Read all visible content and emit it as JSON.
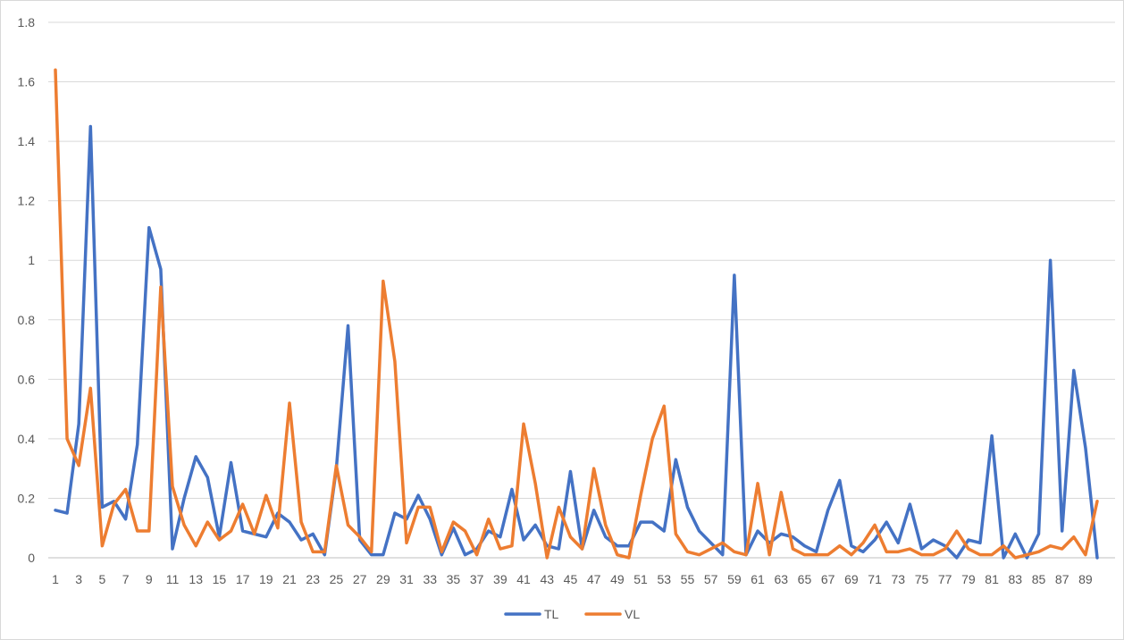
{
  "chart_data": {
    "type": "line",
    "title": "",
    "xlabel": "",
    "ylabel": "",
    "ylim": [
      0,
      1.8
    ],
    "yticks": [
      "0",
      "0.2",
      "0.4",
      "0.6",
      "0.8",
      "1",
      "1.2",
      "1.4",
      "1.6",
      "1.8"
    ],
    "x": [
      1,
      2,
      3,
      4,
      5,
      6,
      7,
      8,
      9,
      10,
      11,
      12,
      13,
      14,
      15,
      16,
      17,
      18,
      19,
      20,
      21,
      22,
      23,
      24,
      25,
      26,
      27,
      28,
      29,
      30,
      31,
      32,
      33,
      34,
      35,
      36,
      37,
      38,
      39,
      40,
      41,
      42,
      43,
      44,
      45,
      46,
      47,
      48,
      49,
      50,
      51,
      52,
      53,
      54,
      55,
      56,
      57,
      58,
      59,
      60,
      61,
      62,
      63,
      64,
      65,
      66,
      67,
      68,
      69,
      70,
      71,
      72,
      73,
      74,
      75,
      76,
      77,
      78,
      79,
      80,
      81,
      82,
      83,
      84,
      85,
      86,
      87,
      88,
      89,
      90
    ],
    "xtick_labels": [
      "1",
      "3",
      "5",
      "7",
      "9",
      "11",
      "13",
      "15",
      "17",
      "19",
      "21",
      "23",
      "25",
      "27",
      "29",
      "31",
      "33",
      "35",
      "37",
      "39",
      "41",
      "43",
      "45",
      "47",
      "49",
      "51",
      "53",
      "55",
      "57",
      "59",
      "61",
      "63",
      "65",
      "67",
      "69",
      "71",
      "73",
      "75",
      "77",
      "79",
      "81",
      "83",
      "85",
      "87",
      "89"
    ],
    "grid": true,
    "legend_position": "bottom",
    "series": [
      {
        "name": "TL",
        "color": "#4472C4",
        "values": [
          0.16,
          0.15,
          0.45,
          1.45,
          0.17,
          0.19,
          0.13,
          0.38,
          1.11,
          0.97,
          0.03,
          0.2,
          0.34,
          0.27,
          0.07,
          0.32,
          0.09,
          0.08,
          0.07,
          0.15,
          0.12,
          0.06,
          0.08,
          0.01,
          0.3,
          0.78,
          0.06,
          0.01,
          0.01,
          0.15,
          0.13,
          0.21,
          0.13,
          0.01,
          0.1,
          0.01,
          0.03,
          0.09,
          0.07,
          0.23,
          0.06,
          0.11,
          0.04,
          0.03,
          0.29,
          0.03,
          0.16,
          0.07,
          0.04,
          0.04,
          0.12,
          0.12,
          0.09,
          0.33,
          0.17,
          0.09,
          0.05,
          0.01,
          0.95,
          0.01,
          0.09,
          0.05,
          0.08,
          0.07,
          0.04,
          0.02,
          0.16,
          0.26,
          0.04,
          0.02,
          0.06,
          0.12,
          0.05,
          0.18,
          0.03,
          0.06,
          0.04,
          0.0,
          0.06,
          0.05,
          0.41,
          0.0,
          0.08,
          0.0,
          0.08,
          1.0,
          0.09,
          0.63,
          0.37,
          0.0
        ]
      },
      {
        "name": "VL",
        "color": "#ED7D31",
        "values": [
          1.64,
          0.4,
          0.31,
          0.57,
          0.04,
          0.18,
          0.23,
          0.09,
          0.09,
          0.91,
          0.24,
          0.11,
          0.04,
          0.12,
          0.06,
          0.09,
          0.18,
          0.08,
          0.21,
          0.1,
          0.52,
          0.12,
          0.02,
          0.02,
          0.31,
          0.11,
          0.07,
          0.02,
          0.93,
          0.66,
          0.05,
          0.17,
          0.17,
          0.02,
          0.12,
          0.09,
          0.01,
          0.13,
          0.03,
          0.04,
          0.45,
          0.25,
          0.0,
          0.17,
          0.07,
          0.03,
          0.3,
          0.11,
          0.01,
          0.0,
          0.21,
          0.4,
          0.51,
          0.08,
          0.02,
          0.01,
          0.03,
          0.05,
          0.02,
          0.01,
          0.25,
          0.01,
          0.22,
          0.03,
          0.01,
          0.01,
          0.01,
          0.04,
          0.01,
          0.05,
          0.11,
          0.02,
          0.02,
          0.03,
          0.01,
          0.01,
          0.03,
          0.09,
          0.03,
          0.01,
          0.01,
          0.04,
          0.0,
          0.01,
          0.02,
          0.04,
          0.03,
          0.07,
          0.01,
          0.19
        ]
      }
    ]
  }
}
